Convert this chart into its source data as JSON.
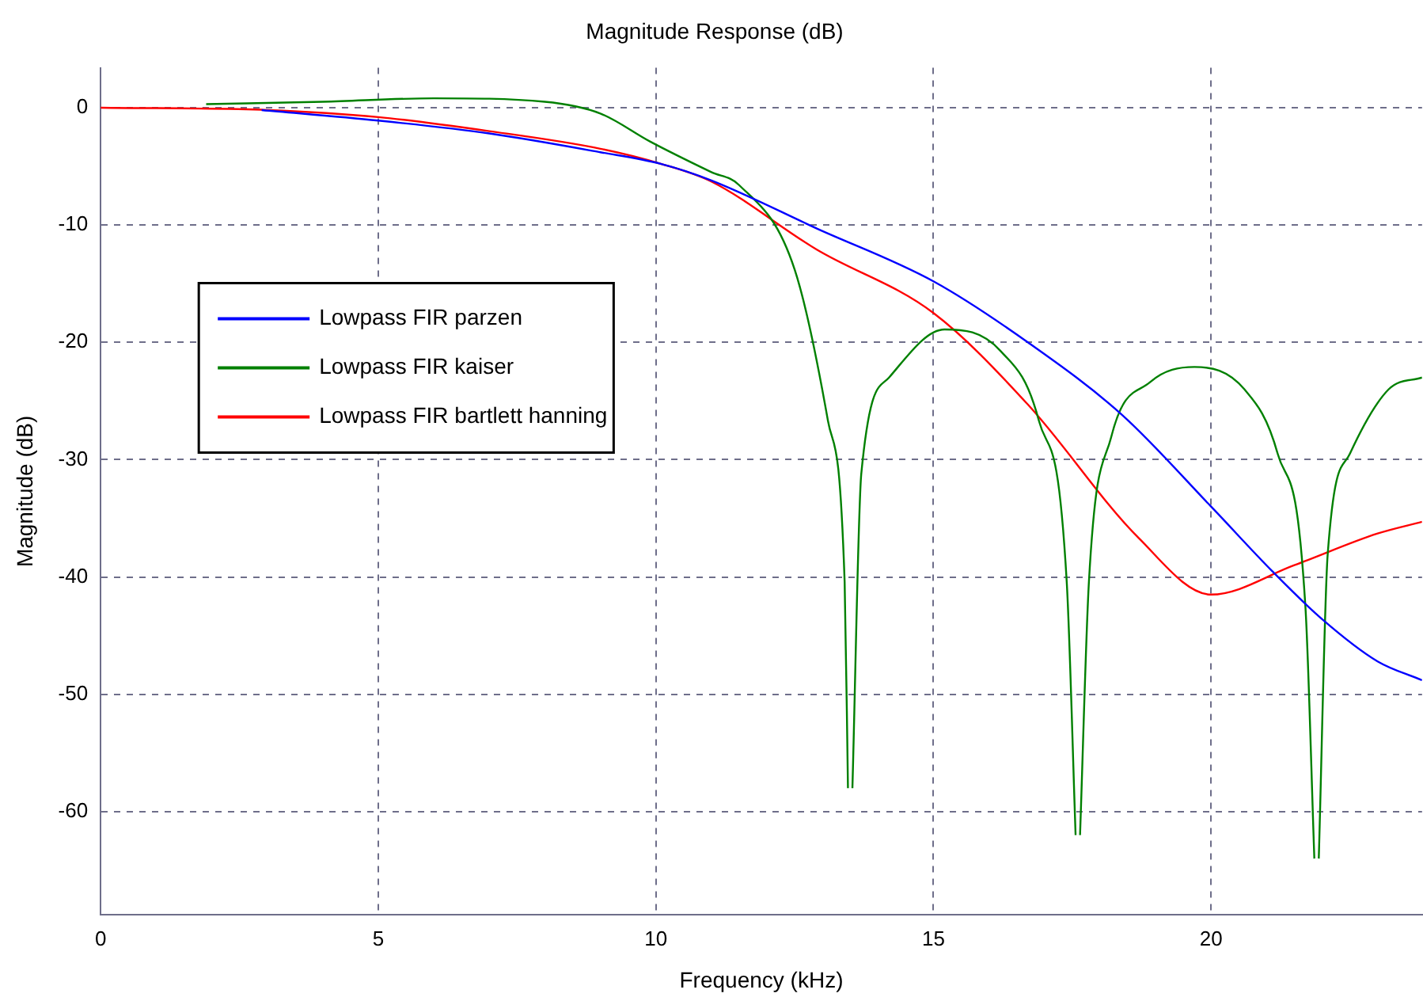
{
  "chart_data": {
    "type": "line",
    "title": "Magnitude Response (dB)",
    "xlabel": "Frequency (kHz)",
    "ylabel": "Magnitude (dB)",
    "xlim": [
      0,
      23.8
    ],
    "ylim": [
      -68.8,
      3.4
    ],
    "xticks": [
      0,
      5,
      10,
      15,
      20
    ],
    "yticks": [
      -60,
      -50,
      -40,
      -30,
      -20,
      -10,
      0
    ],
    "grid": true,
    "legend": "left",
    "line_style": "solid",
    "marker": "none",
    "series": [
      {
        "name": "Lowpass FIR parzen",
        "color": "#0000ff",
        "x": [
          2.9,
          5,
          7,
          9,
          10.1,
          11,
          12.9,
          15,
          16.7,
          18.4,
          20,
          21.1,
          22,
          23,
          23.8
        ],
        "values": [
          -0.2,
          -1.1,
          -2.2,
          -3.8,
          -4.8,
          -6.2,
          -10.3,
          -14.8,
          -20,
          -26.2,
          -34,
          -39.5,
          -43.6,
          -47.2,
          -48.8
        ]
      },
      {
        "name": "Lowpass FIR kaiser",
        "color": "#008000",
        "x": [
          1.9,
          4,
          6,
          8,
          9,
          9.9,
          11,
          11.5,
          12.5,
          13.1,
          13.4,
          13.46,
          13.5,
          13.54,
          13.7,
          14.2,
          15.2,
          16.2,
          16.9,
          17.4,
          17.56,
          17.6,
          17.64,
          17.8,
          18.2,
          18.9,
          19.7,
          20.6,
          21.2,
          21.7,
          21.86,
          21.9,
          21.94,
          22.1,
          22.5,
          23.2,
          23.8
        ],
        "values": [
          0.3,
          0.5,
          0.8,
          0.5,
          -0.5,
          -2.9,
          -5.5,
          -6.6,
          -13.8,
          -26.7,
          -40.4,
          -58,
          null,
          -58,
          -31.2,
          -23,
          -18.9,
          -20.7,
          -26.7,
          -40.4,
          -62,
          null,
          -62,
          -40.4,
          -28.1,
          -23.4,
          -22.1,
          -24,
          -29.5,
          -42.6,
          -64,
          null,
          -64,
          -38.1,
          -29.5,
          -24,
          -23
        ]
      },
      {
        "name": "Lowpass FIR bartlett hanning",
        "color": "#ff0000",
        "x": [
          0,
          3,
          5,
          7,
          9,
          10.1,
          11,
          12.9,
          15,
          16.7,
          18.7,
          20,
          21.5,
          23,
          23.8
        ],
        "values": [
          0,
          -0.2,
          -0.8,
          -2,
          -3.5,
          -4.8,
          -6.3,
          -12.1,
          -17.5,
          -25.3,
          -36.7,
          -41.5,
          -39,
          -36.3,
          -35.3
        ]
      }
    ]
  }
}
